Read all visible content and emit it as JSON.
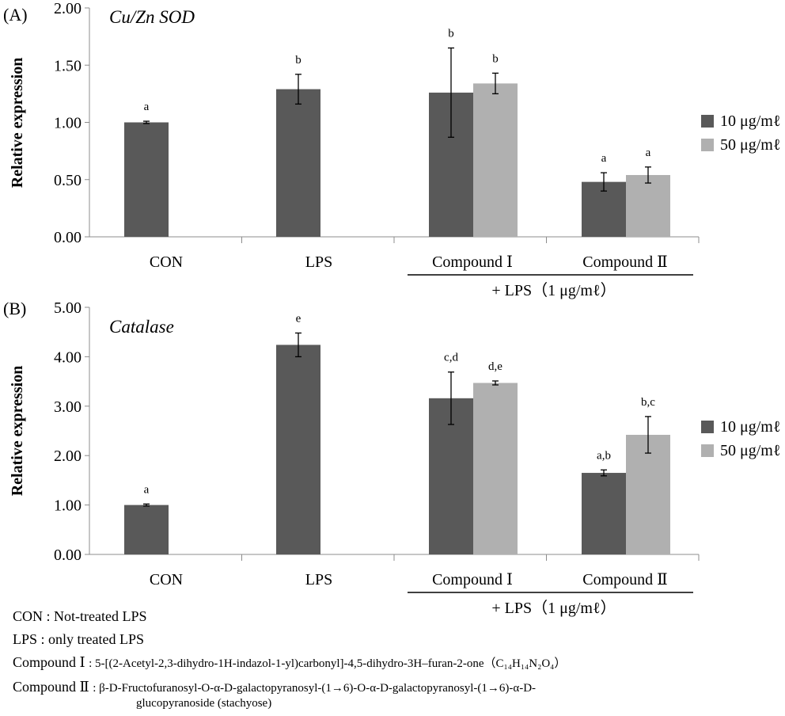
{
  "chart_data": [
    {
      "panel_label": "(A)",
      "title": "Cu/Zn SOD",
      "type": "bar",
      "ylabel": "Relative expression",
      "ylim": [
        0,
        2
      ],
      "yticks": [
        "0.00",
        "0.50",
        "1.00",
        "1.50",
        "2.00"
      ],
      "categories": [
        "CON",
        "LPS",
        "Compound Ⅰ",
        "Compound Ⅱ"
      ],
      "group_label": "+ LPS（1 μg/mℓ）",
      "legend": [
        {
          "name": "10 μg/mℓ",
          "color": "#595959"
        },
        {
          "name": "50 μg/mℓ",
          "color": "#b0b0b0"
        }
      ],
      "bars": [
        {
          "category": "CON",
          "series": "10 μg/mℓ",
          "value": 1.0,
          "error": 0.01,
          "label": "a"
        },
        {
          "category": "LPS",
          "series": "10 μg/mℓ",
          "value": 1.29,
          "error": 0.13,
          "label": "b"
        },
        {
          "category": "Compound Ⅰ",
          "series": "10 μg/mℓ",
          "value": 1.26,
          "error": 0.39,
          "label": "b"
        },
        {
          "category": "Compound Ⅰ",
          "series": "50 μg/mℓ",
          "value": 1.34,
          "error": 0.09,
          "label": "b"
        },
        {
          "category": "Compound Ⅱ",
          "series": "10 μg/mℓ",
          "value": 0.48,
          "error": 0.08,
          "label": "a"
        },
        {
          "category": "Compound Ⅱ",
          "series": "50 μg/mℓ",
          "value": 0.54,
          "error": 0.07,
          "label": "a"
        }
      ]
    },
    {
      "panel_label": "(B)",
      "title": "Catalase",
      "type": "bar",
      "ylabel": "Relative expression",
      "ylim": [
        0,
        5
      ],
      "yticks": [
        "0.00",
        "1.00",
        "2.00",
        "3.00",
        "4.00",
        "5.00"
      ],
      "categories": [
        "CON",
        "LPS",
        "Compound Ⅰ",
        "Compound Ⅱ"
      ],
      "group_label": "+ LPS（1 μg/mℓ）",
      "legend": [
        {
          "name": "10 μg/mℓ",
          "color": "#595959"
        },
        {
          "name": "50 μg/mℓ",
          "color": "#b0b0b0"
        }
      ],
      "bars": [
        {
          "category": "CON",
          "series": "10 μg/mℓ",
          "value": 1.0,
          "error": 0.02,
          "label": "a"
        },
        {
          "category": "LPS",
          "series": "10 μg/mℓ",
          "value": 4.24,
          "error": 0.24,
          "label": "e"
        },
        {
          "category": "Compound Ⅰ",
          "series": "10 μg/mℓ",
          "value": 3.16,
          "error": 0.53,
          "label": "c,d"
        },
        {
          "category": "Compound Ⅰ",
          "series": "50 μg/mℓ",
          "value": 3.47,
          "error": 0.04,
          "label": "d,e"
        },
        {
          "category": "Compound Ⅱ",
          "series": "10 μg/mℓ",
          "value": 1.65,
          "error": 0.06,
          "label": "a,b"
        },
        {
          "category": "Compound Ⅱ",
          "series": "50 μg/mℓ",
          "value": 2.42,
          "error": 0.37,
          "label": "b,c"
        }
      ]
    }
  ],
  "legend": {
    "items": [
      {
        "label": "10 μg/mℓ",
        "color": "#595959"
      },
      {
        "label": "50 μg/mℓ",
        "color": "#b0b0b0"
      }
    ]
  },
  "notes": {
    "con": {
      "term": "CON",
      "def": ": Not-treated LPS"
    },
    "lps": {
      "term": "LPS",
      "def": ": only treated LPS"
    },
    "c1": {
      "term": "Compound Ⅰ",
      "def": ": 5-[(2-Acetyl-2,3-dihydro-1H-indazol-1-yl)carbonyl]-4,5-dihydro-3H–furan-2-one（C₁₄H₁₄N₂O₄）"
    },
    "c2": {
      "term": "Compound Ⅱ",
      "def": ": β-D-Fructofuranosyl-O-α-D-galactopyranosyl-(1→6)-O-α-D-galactopyranosyl-(1→6)-α-D-",
      "cont": "glucopyranoside (stachyose)"
    }
  }
}
